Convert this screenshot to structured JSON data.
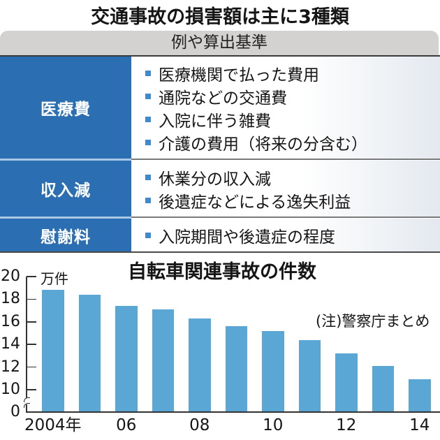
{
  "title": "交通事故の損害額は主に3種類",
  "table": {
    "header": "例や算出基準",
    "rows": [
      {
        "label": "医療費",
        "items": [
          "医療機関で払った費用",
          "通院などの交通費",
          "入院に伴う雑費",
          "介護の費用（将来の分含む）"
        ]
      },
      {
        "label": "収入減",
        "items": [
          "休業分の収入減",
          "後遺症などによる逸失利益"
        ]
      },
      {
        "label": "慰謝料",
        "items": [
          "入院期間や後遺症の程度"
        ]
      }
    ]
  },
  "colors": {
    "label_bg": "#2b6eb1",
    "bullet": "#3f8ac9",
    "bar": "#5aa7d6",
    "header_bg": "#d4d2d0"
  },
  "chart_data": {
    "type": "bar",
    "title": "自転車関連事故の件数",
    "unit_label": "万件",
    "note": "(注)警察庁まとめ",
    "xlabel": "",
    "ylabel": "万件",
    "categories": [
      "2004",
      "2005",
      "2006",
      "2007",
      "2008",
      "2009",
      "2010",
      "2011",
      "2012",
      "2013",
      "2014"
    ],
    "values": [
      18.8,
      18.4,
      17.4,
      17.1,
      16.3,
      15.6,
      15.2,
      14.4,
      13.2,
      12.1,
      10.9
    ],
    "ylim": [
      0,
      20
    ],
    "axis_break": [
      0,
      10
    ],
    "yticks": [
      {
        "label": "20",
        "value": 20
      },
      {
        "label": "18",
        "value": 18
      },
      {
        "label": "16",
        "value": 16
      },
      {
        "label": "14",
        "value": 14
      },
      {
        "label": "12",
        "value": 12
      },
      {
        "label": "10",
        "value": 10
      },
      {
        "label": "0",
        "value": 0
      }
    ],
    "xticks": [
      {
        "label": "2004年",
        "index": 0
      },
      {
        "label": "06",
        "index": 2
      },
      {
        "label": "08",
        "index": 4
      },
      {
        "label": "10",
        "index": 6
      },
      {
        "label": "12",
        "index": 8
      },
      {
        "label": "14",
        "index": 10
      }
    ],
    "grid": false,
    "legend": "none"
  }
}
